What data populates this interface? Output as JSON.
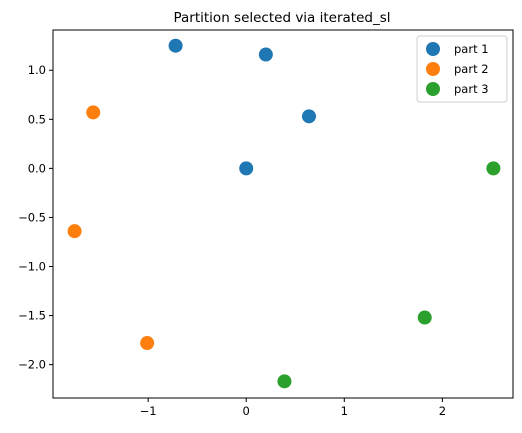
{
  "chart_data": {
    "type": "scatter",
    "title": "Partition selected via iterated_sl",
    "xlabel": "",
    "ylabel": "",
    "xlim": [
      -1.97,
      2.72
    ],
    "ylim": [
      -2.34,
      1.41
    ],
    "xticks": [
      -1,
      0,
      1,
      2
    ],
    "xtick_labels": [
      "−1",
      "0",
      "1",
      "2"
    ],
    "yticks": [
      1.0,
      0.5,
      0.0,
      -0.5,
      -1.0,
      -1.5,
      -2.0
    ],
    "ytick_labels": [
      "1.0",
      "0.5",
      "0.0",
      "−0.5",
      "−1.0",
      "−1.5",
      "−2.0"
    ],
    "grid": false,
    "legend_position": "top-right",
    "series": [
      {
        "name": "part 1",
        "color": "#1f77b4",
        "points": [
          [
            -0.72,
            1.25
          ],
          [
            0.2,
            1.16
          ],
          [
            0.64,
            0.53
          ],
          [
            0.0,
            0.0
          ]
        ]
      },
      {
        "name": "part 2",
        "color": "#ff7f0e",
        "points": [
          [
            -1.56,
            0.57
          ],
          [
            -1.75,
            -0.64
          ],
          [
            -1.01,
            -1.78
          ]
        ]
      },
      {
        "name": "part 3",
        "color": "#2ca02c",
        "points": [
          [
            2.52,
            0.0
          ],
          [
            1.82,
            -1.52
          ],
          [
            0.39,
            -2.17
          ]
        ]
      }
    ]
  }
}
